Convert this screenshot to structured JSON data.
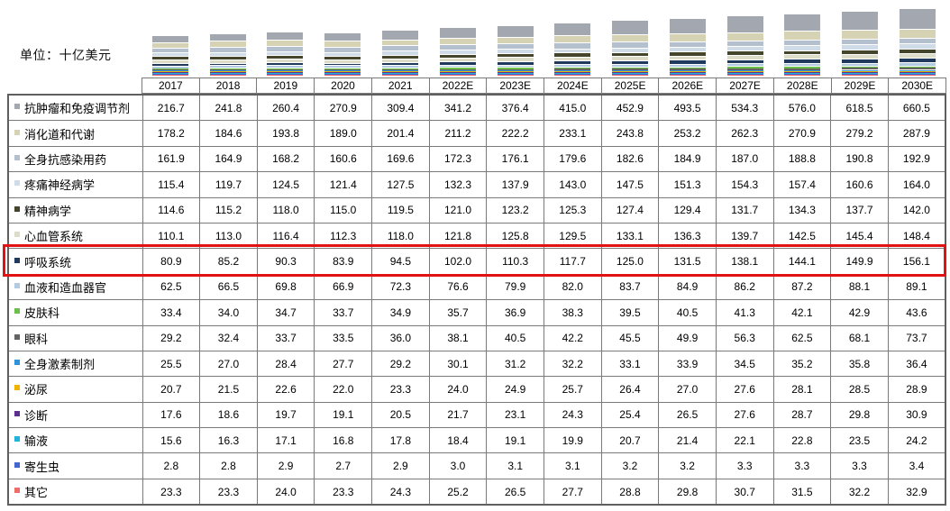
{
  "unit_label": "单位：十亿美元",
  "highlight": {
    "label": "呼吸系统",
    "row_index": 6,
    "color": "#e21212"
  },
  "chart_data": {
    "type": "bar",
    "stacked": true,
    "title": "",
    "unit": "十亿美元",
    "legend_position": "table-row-labels-left",
    "grid": false,
    "x": [
      "2017",
      "2018",
      "2019",
      "2020",
      "2021",
      "2022E",
      "2023E",
      "2024E",
      "2025E",
      "2026E",
      "2027E",
      "2028E",
      "2029E",
      "2030E"
    ],
    "series": [
      {
        "name": "抗肿瘤和免疫调节剂",
        "color": "#a3a7b0",
        "values": [
          216.7,
          241.8,
          260.4,
          270.9,
          309.4,
          341.2,
          376.4,
          415.0,
          452.9,
          493.5,
          534.3,
          576.0,
          618.5,
          660.5
        ]
      },
      {
        "name": "消化道和代谢",
        "color": "#d6d2b4",
        "values": [
          178.2,
          184.6,
          193.8,
          189.0,
          201.4,
          211.2,
          222.2,
          233.1,
          243.8,
          253.2,
          262.3,
          270.9,
          279.2,
          287.9
        ]
      },
      {
        "name": "全身抗感染用药",
        "color": "#b5c0ce",
        "values": [
          161.9,
          164.9,
          168.2,
          160.6,
          169.6,
          172.3,
          176.1,
          179.6,
          182.6,
          184.9,
          187.0,
          188.8,
          190.8,
          192.9
        ]
      },
      {
        "name": "疼痛神经病学",
        "color": "#cfdce8",
        "values": [
          115.4,
          119.7,
          124.5,
          121.4,
          127.5,
          132.3,
          137.9,
          143.0,
          147.5,
          151.3,
          154.3,
          157.4,
          160.6,
          164.0
        ]
      },
      {
        "name": "精神病学",
        "color": "#45452c",
        "values": [
          114.6,
          115.2,
          118.0,
          115.0,
          119.5,
          121.0,
          123.2,
          125.3,
          127.4,
          129.4,
          131.7,
          134.3,
          137.7,
          142.0
        ]
      },
      {
        "name": "心血管系统",
        "color": "#dcdcc8",
        "values": [
          110.1,
          113.0,
          116.4,
          112.3,
          118.0,
          121.8,
          125.8,
          129.5,
          133.1,
          136.3,
          139.7,
          142.5,
          145.4,
          148.4
        ]
      },
      {
        "name": "呼吸系统",
        "color": "#1f3a5c",
        "values": [
          80.9,
          85.2,
          90.3,
          83.9,
          94.5,
          102.0,
          110.3,
          117.7,
          125.0,
          131.5,
          138.1,
          144.1,
          149.9,
          156.1
        ]
      },
      {
        "name": "血液和造血器官",
        "color": "#b3cbe0",
        "values": [
          62.5,
          66.5,
          69.8,
          66.9,
          72.3,
          76.6,
          79.9,
          82.0,
          83.7,
          84.9,
          86.2,
          87.2,
          88.1,
          89.1
        ]
      },
      {
        "name": "皮肤科",
        "color": "#6cbf4a",
        "values": [
          33.4,
          34.0,
          34.7,
          33.7,
          34.9,
          35.7,
          36.9,
          38.3,
          39.5,
          40.5,
          41.3,
          42.1,
          42.9,
          43.6
        ]
      },
      {
        "name": "眼科",
        "color": "#636363",
        "values": [
          29.2,
          32.4,
          33.7,
          33.5,
          36.0,
          38.1,
          40.5,
          42.2,
          45.5,
          49.9,
          56.3,
          62.5,
          68.1,
          73.7
        ]
      },
      {
        "name": "全身激素制剂",
        "color": "#2e93d8",
        "values": [
          25.5,
          27.0,
          28.4,
          27.7,
          29.2,
          30.1,
          31.2,
          32.2,
          33.1,
          33.9,
          34.5,
          35.2,
          35.8,
          36.4
        ]
      },
      {
        "name": "泌尿",
        "color": "#f0b400",
        "values": [
          20.7,
          21.5,
          22.6,
          22.0,
          23.3,
          24.0,
          24.9,
          25.7,
          26.4,
          27.0,
          27.6,
          28.1,
          28.5,
          28.9
        ]
      },
      {
        "name": "诊断",
        "color": "#5c2e90",
        "values": [
          17.6,
          18.6,
          19.7,
          19.1,
          20.5,
          21.7,
          23.1,
          24.3,
          25.4,
          26.5,
          27.6,
          28.7,
          29.8,
          30.9
        ]
      },
      {
        "name": "输液",
        "color": "#22b3dc",
        "values": [
          15.6,
          16.3,
          17.1,
          16.8,
          17.8,
          18.4,
          19.1,
          19.9,
          20.7,
          21.4,
          22.1,
          22.8,
          23.5,
          24.2
        ]
      },
      {
        "name": "寄生虫",
        "color": "#4465cf",
        "values": [
          2.8,
          2.8,
          2.9,
          2.7,
          2.9,
          3.0,
          3.1,
          3.1,
          3.2,
          3.2,
          3.3,
          3.3,
          3.3,
          3.4
        ]
      },
      {
        "name": "其它",
        "color": "#ee6d68",
        "values": [
          23.3,
          23.3,
          24.0,
          23.3,
          24.3,
          25.2,
          26.5,
          27.7,
          28.8,
          29.8,
          30.7,
          31.5,
          32.2,
          32.9
        ]
      }
    ]
  }
}
